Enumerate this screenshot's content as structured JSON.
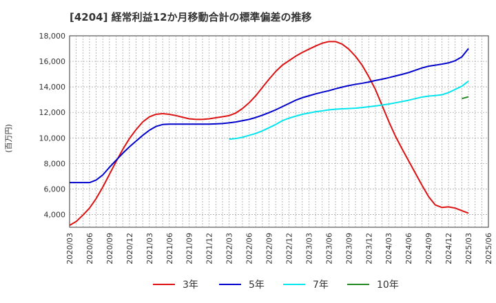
{
  "chart_data": {
    "type": "line",
    "title": "[4204]  経常利益12か月移動合計の標準偏差の推移",
    "ylabel": "(百万円)",
    "xlabel": "",
    "ylim": [
      3000,
      18000
    ],
    "yticks": [
      4000,
      6000,
      8000,
      10000,
      12000,
      14000,
      16000,
      18000
    ],
    "ytick_labels": [
      "4,000",
      "6,000",
      "8,000",
      "10,000",
      "12,000",
      "14,000",
      "16,000",
      "18,000"
    ],
    "x_range": [
      "2020-03",
      "2025-06"
    ],
    "xtick_labels": [
      "2020/03",
      "2020/06",
      "2020/09",
      "2020/12",
      "2021/03",
      "2021/06",
      "2021/09",
      "2021/12",
      "2022/03",
      "2022/06",
      "2022/09",
      "2022/12",
      "2023/03",
      "2023/06",
      "2023/09",
      "2023/12",
      "2024/03",
      "2024/06",
      "2024/09",
      "2024/12",
      "2025/03",
      "2025/06"
    ],
    "grid": true,
    "legend_position": "bottom",
    "series": [
      {
        "name": "3年",
        "color": "#dd1111",
        "x": [
          "2020-03",
          "2020-04",
          "2020-05",
          "2020-06",
          "2020-07",
          "2020-08",
          "2020-09",
          "2020-10",
          "2020-11",
          "2020-12",
          "2021-01",
          "2021-02",
          "2021-03",
          "2021-04",
          "2021-05",
          "2021-06",
          "2021-07",
          "2021-08",
          "2021-09",
          "2021-10",
          "2021-11",
          "2021-12",
          "2022-01",
          "2022-02",
          "2022-03",
          "2022-04",
          "2022-05",
          "2022-06",
          "2022-07",
          "2022-08",
          "2022-09",
          "2022-10",
          "2022-11",
          "2022-12",
          "2023-01",
          "2023-02",
          "2023-03",
          "2023-04",
          "2023-05",
          "2023-06",
          "2023-07",
          "2023-08",
          "2023-09",
          "2023-10",
          "2023-11",
          "2023-12",
          "2024-01",
          "2024-02",
          "2024-03",
          "2024-04",
          "2024-05",
          "2024-06",
          "2024-07",
          "2024-08",
          "2024-09",
          "2024-10",
          "2024-11",
          "2024-12",
          "2025-01",
          "2025-02",
          "2025-03"
        ],
        "values": [
          3150,
          3450,
          3950,
          4500,
          5250,
          6150,
          7150,
          8150,
          9100,
          9950,
          10650,
          11250,
          11650,
          11850,
          11900,
          11850,
          11750,
          11620,
          11500,
          11450,
          11450,
          11500,
          11580,
          11660,
          11750,
          11950,
          12300,
          12750,
          13300,
          13950,
          14600,
          15200,
          15700,
          16050,
          16400,
          16700,
          16950,
          17200,
          17420,
          17550,
          17550,
          17350,
          16950,
          16400,
          15700,
          14800,
          13800,
          12550,
          11300,
          10150,
          9150,
          8200,
          7250,
          6300,
          5400,
          4750,
          4550,
          4600,
          4500,
          4300,
          4100
        ]
      },
      {
        "name": "5年",
        "color": "#0000cc",
        "x": [
          "2020-03",
          "2020-04",
          "2020-05",
          "2020-06",
          "2020-07",
          "2020-08",
          "2020-09",
          "2020-10",
          "2020-11",
          "2020-12",
          "2021-01",
          "2021-02",
          "2021-03",
          "2021-04",
          "2021-05",
          "2021-06",
          "2021-07",
          "2021-08",
          "2021-09",
          "2021-10",
          "2021-11",
          "2021-12",
          "2022-01",
          "2022-02",
          "2022-03",
          "2022-04",
          "2022-05",
          "2022-06",
          "2022-07",
          "2022-08",
          "2022-09",
          "2022-10",
          "2022-11",
          "2022-12",
          "2023-01",
          "2023-02",
          "2023-03",
          "2023-04",
          "2023-05",
          "2023-06",
          "2023-07",
          "2023-08",
          "2023-09",
          "2023-10",
          "2023-11",
          "2023-12",
          "2024-01",
          "2024-02",
          "2024-03",
          "2024-04",
          "2024-05",
          "2024-06",
          "2024-07",
          "2024-08",
          "2024-09",
          "2024-10",
          "2024-11",
          "2024-12",
          "2025-01",
          "2025-02",
          "2025-03"
        ],
        "values": [
          6500,
          6500,
          6500,
          6500,
          6700,
          7100,
          7700,
          8250,
          8800,
          9300,
          9750,
          10200,
          10600,
          10900,
          11050,
          11080,
          11080,
          11080,
          11080,
          11080,
          11080,
          11080,
          11100,
          11130,
          11180,
          11250,
          11350,
          11450,
          11600,
          11780,
          11980,
          12200,
          12450,
          12700,
          12950,
          13150,
          13300,
          13450,
          13580,
          13700,
          13850,
          13980,
          14100,
          14200,
          14280,
          14380,
          14500,
          14600,
          14720,
          14850,
          14980,
          15120,
          15300,
          15480,
          15620,
          15700,
          15780,
          15880,
          16050,
          16350,
          17000
        ]
      },
      {
        "name": "7年",
        "color": "#00e5ee",
        "x": [
          "2022-03",
          "2022-04",
          "2022-05",
          "2022-06",
          "2022-07",
          "2022-08",
          "2022-09",
          "2022-10",
          "2022-11",
          "2022-12",
          "2023-01",
          "2023-02",
          "2023-03",
          "2023-04",
          "2023-05",
          "2023-06",
          "2023-07",
          "2023-08",
          "2023-09",
          "2023-10",
          "2023-11",
          "2023-12",
          "2024-01",
          "2024-02",
          "2024-03",
          "2024-04",
          "2024-05",
          "2024-06",
          "2024-07",
          "2024-08",
          "2024-09",
          "2024-10",
          "2024-11",
          "2024-12",
          "2025-01",
          "2025-02",
          "2025-03"
        ],
        "values": [
          9900,
          9950,
          10050,
          10200,
          10350,
          10550,
          10800,
          11050,
          11350,
          11550,
          11700,
          11850,
          11950,
          12050,
          12120,
          12200,
          12250,
          12280,
          12300,
          12330,
          12380,
          12440,
          12500,
          12580,
          12650,
          12750,
          12850,
          12950,
          13080,
          13200,
          13280,
          13320,
          13380,
          13550,
          13800,
          14050,
          14450
        ]
      },
      {
        "name": "10年",
        "color": "#228822",
        "x": [
          "2025-02",
          "2025-03"
        ],
        "values": [
          13080,
          13220
        ]
      }
    ]
  }
}
